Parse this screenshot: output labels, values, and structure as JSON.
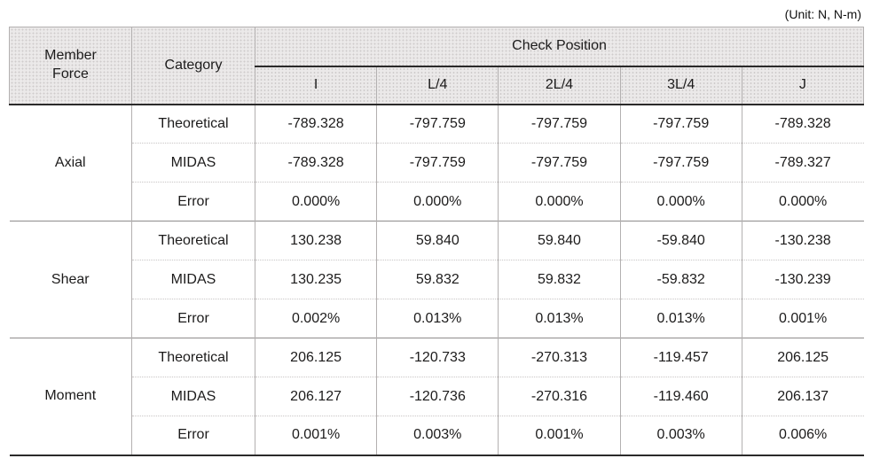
{
  "unit_label": "(Unit: N, N-m)",
  "table": {
    "header": {
      "member_force": "Member Force",
      "category": "Category",
      "check_position": "Check Position",
      "positions": [
        "I",
        "L/4",
        "2L/4",
        "3L/4",
        "J"
      ]
    },
    "groups": [
      {
        "name": "Axial",
        "rows": [
          {
            "label": "Theoretical",
            "values": [
              "-789.328",
              "-797.759",
              "-797.759",
              "-797.759",
              "-789.328"
            ]
          },
          {
            "label": "MIDAS",
            "values": [
              "-789.328",
              "-797.759",
              "-797.759",
              "-797.759",
              "-789.327"
            ]
          },
          {
            "label": "Error",
            "values": [
              "0.000%",
              "0.000%",
              "0.000%",
              "0.000%",
              "0.000%"
            ]
          }
        ]
      },
      {
        "name": "Shear",
        "rows": [
          {
            "label": "Theoretical",
            "values": [
              "130.238",
              "59.840",
              "59.840",
              "-59.840",
              "-130.238"
            ]
          },
          {
            "label": "MIDAS",
            "values": [
              "130.235",
              "59.832",
              "59.832",
              "-59.832",
              "-130.239"
            ]
          },
          {
            "label": "Error",
            "values": [
              "0.002%",
              "0.013%",
              "0.013%",
              "0.013%",
              "0.001%"
            ]
          }
        ]
      },
      {
        "name": "Moment",
        "rows": [
          {
            "label": "Theoretical",
            "values": [
              "206.125",
              "-120.733",
              "-270.313",
              "-119.457",
              "206.125"
            ]
          },
          {
            "label": "MIDAS",
            "values": [
              "206.127",
              "-120.736",
              "-270.316",
              "-119.460",
              "206.137"
            ]
          },
          {
            "label": "Error",
            "values": [
              "0.001%",
              "0.003%",
              "0.001%",
              "0.003%",
              "0.006%"
            ]
          }
        ]
      }
    ]
  },
  "colors": {
    "header_bg": "#ebe9e9",
    "header_dot": "#cfcccc",
    "grid_line": "#b3b0b0",
    "group_line": "#8f8c8c",
    "strong_line": "#2b2a2a",
    "text": "#1c1b1b"
  }
}
